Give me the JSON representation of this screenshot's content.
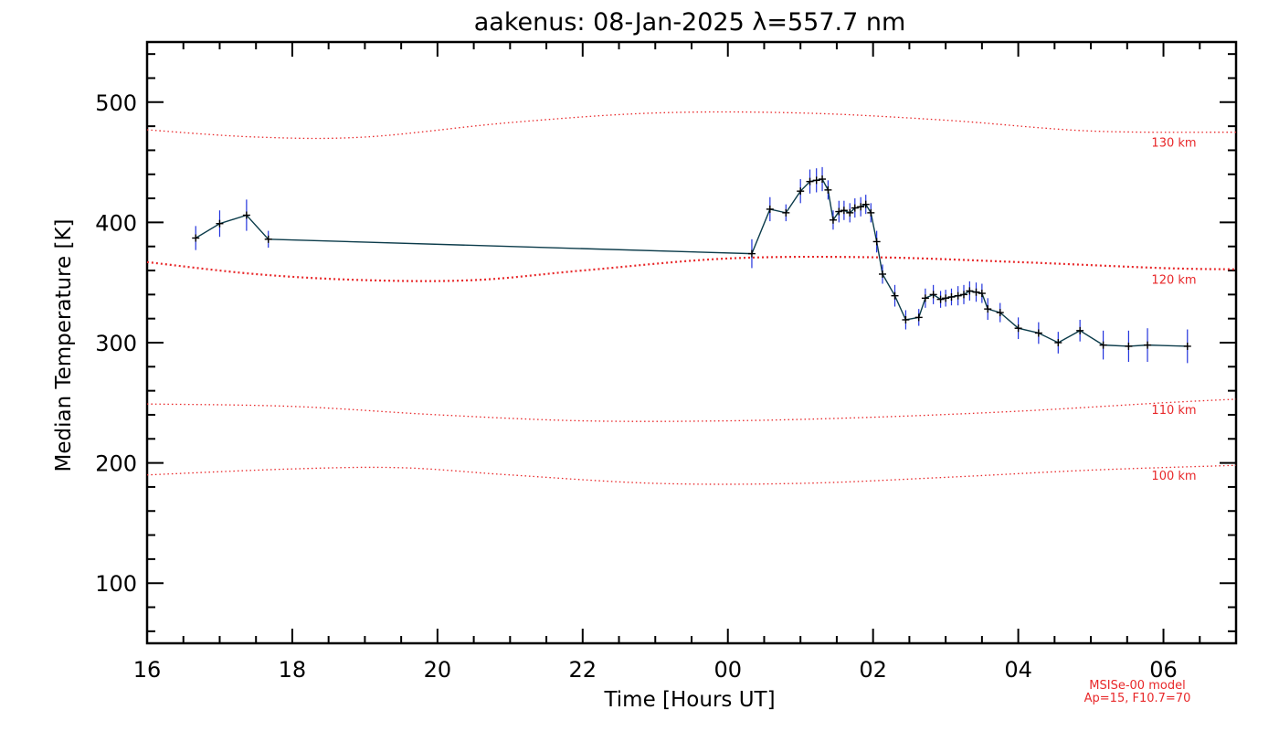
{
  "chart_data": {
    "type": "line",
    "title": "aakenus: 08-Jan-2025 λ=557.7 nm",
    "xlabel": "Time [Hours UT]",
    "ylabel": "Median Temperature [K]",
    "x_start_hour": 16,
    "xlim": [
      16,
      31
    ],
    "ylim": [
      50,
      550
    ],
    "x_ticks": [
      "16",
      "18",
      "20",
      "22",
      "00",
      "02",
      "04",
      "06"
    ],
    "y_ticks": [
      "100",
      "200",
      "300",
      "400",
      "500"
    ],
    "series": [
      {
        "name": "",
        "x": [
          16.67,
          17.0,
          17.37,
          17.67,
          24.33,
          24.58,
          24.8,
          25.0,
          25.13,
          25.22,
          25.3,
          25.38,
          25.45,
          25.53,
          25.6,
          25.68,
          25.75,
          25.83,
          25.9,
          25.97,
          26.05,
          26.13,
          26.3,
          26.45,
          26.63,
          26.72,
          26.83,
          26.93,
          27.0,
          27.08,
          27.17,
          27.25,
          27.33,
          27.42,
          27.5,
          27.58,
          27.75,
          28.0,
          28.28,
          28.55,
          28.85,
          29.17,
          29.52,
          29.78,
          30.33
        ],
        "y": [
          387,
          399,
          406,
          386,
          374,
          411,
          408,
          426,
          434,
          435,
          436,
          427,
          402,
          409,
          410,
          408,
          412,
          413,
          415,
          408,
          384,
          357,
          339,
          319,
          321,
          337,
          340,
          336,
          337,
          338,
          339,
          340,
          343,
          342,
          341,
          328,
          325,
          312,
          308,
          300,
          310,
          298,
          297,
          298,
          297
        ],
        "err": [
          10,
          11,
          13,
          7,
          12,
          10,
          7,
          10,
          10,
          10,
          10,
          8,
          8,
          9,
          8,
          8,
          8,
          8,
          8,
          8,
          9,
          8,
          9,
          8,
          7,
          8,
          8,
          7,
          7,
          7,
          8,
          8,
          8,
          8,
          8,
          9,
          8,
          9,
          9,
          9,
          9,
          12,
          13,
          14,
          14
        ]
      }
    ],
    "model_curves": [
      {
        "label": "130 km",
        "x": [
          16,
          17.5,
          19,
          21,
          23,
          25,
          27,
          29,
          31
        ],
        "y": [
          477,
          471,
          471,
          483,
          491,
          491,
          485,
          476,
          475
        ]
      },
      {
        "label": "120 km",
        "x": [
          16,
          17.5,
          19,
          20.5,
          22,
          24,
          26,
          28,
          30,
          31
        ],
        "y": [
          367,
          357,
          352,
          352,
          360,
          370,
          371,
          367,
          362,
          361
        ]
      },
      {
        "label": "110 km",
        "x": [
          16,
          18,
          20,
          22,
          24,
          26,
          28,
          30,
          31
        ],
        "y": [
          249,
          247,
          240,
          235,
          235,
          238,
          243,
          250,
          253
        ]
      },
      {
        "label": "100 km",
        "x": [
          16,
          18,
          19.5,
          21,
          23,
          25,
          27,
          29,
          31
        ],
        "y": [
          190,
          195,
          196,
          190,
          183,
          183,
          188,
          194,
          198
        ]
      }
    ],
    "footnote_lines": [
      "MSISe-00 model",
      "Ap=15, F10.7=70"
    ],
    "colors": {
      "model": "#e8282a",
      "data_line": "#0b3b4a",
      "error_bars": "#2233dd",
      "markers": "#000000"
    }
  }
}
